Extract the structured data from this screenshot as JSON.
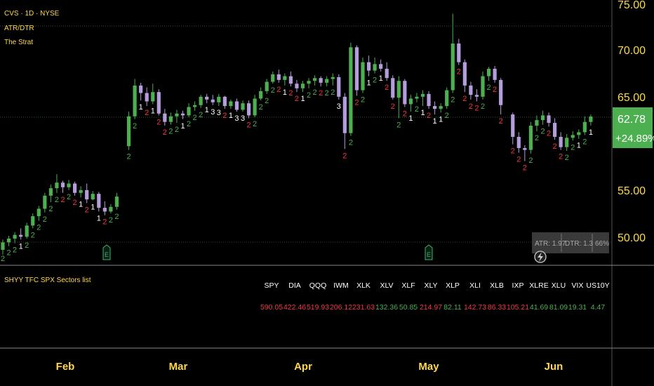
{
  "header": {
    "symbol_line": "CVS · 1D · NYSE",
    "indicator_1": "ATR/DTR",
    "indicator_2": "The Strat"
  },
  "price_axis": {
    "ticks": [
      "75.00",
      "70.00",
      "65.00",
      "55.00",
      "50.00"
    ],
    "tick_values": [
      75,
      70,
      65,
      55,
      50
    ],
    "last_price": "62.78",
    "change_pct": "+24.89%"
  },
  "time_axis": {
    "months": [
      "Feb",
      "Mar",
      "Apr",
      "May",
      "Jun"
    ]
  },
  "atr_box": {
    "atr_text": "ATR: 1.97",
    "dtr_text": "DTR: 1.3",
    "pct_text": "66%"
  },
  "earnings_markers": [
    "E",
    "E"
  ],
  "sector_table": {
    "title": "SHYY TFC SPX Sectors list",
    "columns": [
      {
        "symbol": "SPY",
        "value": "590.05",
        "color": "#f23645"
      },
      {
        "symbol": "DIA",
        "value": "422.46",
        "color": "#f23645"
      },
      {
        "symbol": "QQQ",
        "value": "519.93",
        "color": "#f23645"
      },
      {
        "symbol": "IWM",
        "value": "206.12",
        "color": "#f23645"
      },
      {
        "symbol": "XLK",
        "value": "231.63",
        "color": "#f23645"
      },
      {
        "symbol": "XLV",
        "value": "132.36",
        "color": "#4caf50"
      },
      {
        "symbol": "XLF",
        "value": "50.85",
        "color": "#4caf50"
      },
      {
        "symbol": "XLY",
        "value": "214.97",
        "color": "#f23645"
      },
      {
        "symbol": "XLP",
        "value": "82.11",
        "color": "#4caf50"
      },
      {
        "symbol": "XLI",
        "value": "142.73",
        "color": "#f23645"
      },
      {
        "symbol": "XLB",
        "value": "86.33",
        "color": "#f23645"
      },
      {
        "symbol": "IXP",
        "value": "105.21",
        "color": "#f23645"
      },
      {
        "symbol": "XLRE",
        "value": "41.69",
        "color": "#4caf50"
      },
      {
        "symbol": "XLU",
        "value": "81.09",
        "color": "#4caf50"
      },
      {
        "symbol": "VIX",
        "value": "19.31",
        "color": "#4caf50"
      },
      {
        "symbol": "US10Y",
        "value": "4.47",
        "color": "#4caf50"
      }
    ]
  },
  "colors": {
    "background": "#000000",
    "up_candle": "#4caf50",
    "down_candle": "#b39ddb",
    "strat_2_up": "#4caf50",
    "strat_2_down": "#f23645",
    "strat_inside_outside": "#ffffff",
    "axis_text": "#ffd84a",
    "last_price_bg": "#4caf50"
  },
  "candles": [
    {
      "o": 48.5,
      "h": 49.6,
      "l": 48.0,
      "c": 49.3,
      "s": "2"
    },
    {
      "o": 49.3,
      "h": 50.0,
      "l": 48.9,
      "c": 49.7,
      "s": "2"
    },
    {
      "o": 49.7,
      "h": 50.4,
      "l": 49.2,
      "c": 50.1,
      "s": "2"
    },
    {
      "o": 50.1,
      "h": 50.8,
      "l": 49.6,
      "c": 49.9,
      "s": "1"
    },
    {
      "o": 49.9,
      "h": 51.4,
      "l": 49.7,
      "c": 51.1,
      "s": "2"
    },
    {
      "o": 51.1,
      "h": 52.4,
      "l": 50.8,
      "c": 52.1,
      "s": "2"
    },
    {
      "o": 52.1,
      "h": 53.2,
      "l": 51.6,
      "c": 52.9,
      "s": "2"
    },
    {
      "o": 52.9,
      "h": 54.6,
      "l": 52.5,
      "c": 54.3,
      "s": "2"
    },
    {
      "o": 54.3,
      "h": 55.5,
      "l": 53.6,
      "c": 55.1,
      "s": "2"
    },
    {
      "o": 55.1,
      "h": 56.6,
      "l": 54.6,
      "c": 55.7,
      "s": "2"
    },
    {
      "o": 55.7,
      "h": 55.9,
      "l": 54.6,
      "c": 55.2,
      "s": "2"
    },
    {
      "o": 55.2,
      "h": 56.0,
      "l": 54.9,
      "c": 55.6,
      "s": "2"
    },
    {
      "o": 55.6,
      "h": 55.8,
      "l": 54.3,
      "c": 54.6,
      "s": "2"
    },
    {
      "o": 54.6,
      "h": 55.3,
      "l": 54.1,
      "c": 54.9,
      "s": "1"
    },
    {
      "o": 54.9,
      "h": 55.6,
      "l": 53.5,
      "c": 53.9,
      "s": "2"
    },
    {
      "o": 53.9,
      "h": 54.8,
      "l": 53.8,
      "c": 54.5,
      "s": "1"
    },
    {
      "o": 54.5,
      "h": 54.7,
      "l": 52.6,
      "c": 53.0,
      "s": "1"
    },
    {
      "o": 53.0,
      "h": 53.7,
      "l": 52.2,
      "c": 52.6,
      "s": "2"
    },
    {
      "o": 52.6,
      "h": 53.4,
      "l": 52.4,
      "c": 53.1,
      "s": "2"
    },
    {
      "o": 53.1,
      "h": 54.6,
      "l": 52.8,
      "c": 54.2,
      "s": "2"
    },
    {
      "o": null
    },
    {
      "o": 59.6,
      "h": 63.3,
      "l": 59.2,
      "c": 62.8,
      "s": "2"
    },
    {
      "o": 62.8,
      "h": 66.8,
      "l": 62.5,
      "c": 66.1,
      "s": "2"
    },
    {
      "o": 66.1,
      "h": 66.4,
      "l": 64.5,
      "c": 65.3,
      "s": "1"
    },
    {
      "o": 65.3,
      "h": 65.9,
      "l": 63.9,
      "c": 64.4,
      "s": "2"
    },
    {
      "o": 64.4,
      "h": 66.3,
      "l": 64.1,
      "c": 65.4,
      "s": "1"
    },
    {
      "o": 65.4,
      "h": 65.7,
      "l": 62.9,
      "c": 63.1,
      "s": "2"
    },
    {
      "o": 63.1,
      "h": 63.6,
      "l": 61.8,
      "c": 62.2,
      "s": "2"
    },
    {
      "o": 62.2,
      "h": 63.2,
      "l": 61.9,
      "c": 62.8,
      "s": "2"
    },
    {
      "o": 62.8,
      "h": 63.5,
      "l": 62.1,
      "c": 63.1,
      "s": "2"
    },
    {
      "o": 63.1,
      "h": 63.4,
      "l": 62.5,
      "c": 62.9,
      "s": "1"
    },
    {
      "o": 62.9,
      "h": 64.2,
      "l": 62.7,
      "c": 63.8,
      "s": "2"
    },
    {
      "o": 63.8,
      "h": 64.4,
      "l": 63.4,
      "c": 64.0,
      "s": "2"
    },
    {
      "o": 64.0,
      "h": 65.1,
      "l": 63.7,
      "c": 64.9,
      "s": "2"
    },
    {
      "o": 64.9,
      "h": 65.2,
      "l": 64.2,
      "c": 64.6,
      "s": "1"
    },
    {
      "o": 64.6,
      "h": 65.1,
      "l": 64.0,
      "c": 64.3,
      "s": "3"
    },
    {
      "o": 64.3,
      "h": 65.2,
      "l": 63.9,
      "c": 64.9,
      "s": "3"
    },
    {
      "o": 64.9,
      "h": 65.0,
      "l": 63.6,
      "c": 63.9,
      "s": "2"
    },
    {
      "o": 63.9,
      "h": 64.6,
      "l": 63.6,
      "c": 64.4,
      "s": "1"
    },
    {
      "o": 64.4,
      "h": 64.7,
      "l": 63.3,
      "c": 63.5,
      "s": "3"
    },
    {
      "o": 63.5,
      "h": 64.5,
      "l": 63.3,
      "c": 64.2,
      "s": "3"
    },
    {
      "o": 64.2,
      "h": 64.5,
      "l": 62.6,
      "c": 62.9,
      "s": "2"
    },
    {
      "o": 62.9,
      "h": 65.1,
      "l": 62.7,
      "c": 64.7,
      "s": "2"
    },
    {
      "o": 64.7,
      "h": 65.9,
      "l": 64.5,
      "c": 65.5,
      "s": "2"
    },
    {
      "o": 65.5,
      "h": 66.8,
      "l": 65.2,
      "c": 66.5,
      "s": "2"
    },
    {
      "o": 66.5,
      "h": 67.6,
      "l": 66.3,
      "c": 67.3,
      "s": "2"
    },
    {
      "o": 67.3,
      "h": 67.8,
      "l": 66.4,
      "c": 66.7,
      "s": "2"
    },
    {
      "o": 66.7,
      "h": 67.4,
      "l": 66.1,
      "c": 67.1,
      "s": "1"
    },
    {
      "o": 67.1,
      "h": 67.6,
      "l": 66.0,
      "c": 66.3,
      "s": "2"
    },
    {
      "o": 66.3,
      "h": 66.7,
      "l": 65.4,
      "c": 65.8,
      "s": "2"
    },
    {
      "o": 65.8,
      "h": 66.6,
      "l": 65.4,
      "c": 66.3,
      "s": "1"
    },
    {
      "o": 66.3,
      "h": 66.9,
      "l": 65.8,
      "c": 66.6,
      "s": "2"
    },
    {
      "o": 66.6,
      "h": 67.2,
      "l": 66.1,
      "c": 66.9,
      "s": "2"
    },
    {
      "o": 66.9,
      "h": 67.1,
      "l": 66.0,
      "c": 66.4,
      "s": "2"
    },
    {
      "o": 66.4,
      "h": 67.1,
      "l": 66.0,
      "c": 66.8,
      "s": "2"
    },
    {
      "o": 66.8,
      "h": 67.4,
      "l": 66.1,
      "c": 67.0,
      "s": "2"
    },
    {
      "o": 67.0,
      "h": 67.3,
      "l": 64.6,
      "c": 64.9,
      "s": "3"
    },
    {
      "o": 64.9,
      "h": 65.3,
      "l": 59.3,
      "c": 61.0,
      "s": "2"
    },
    {
      "o": 61.0,
      "h": 70.7,
      "l": 60.7,
      "c": 70.2,
      "s": "2"
    },
    {
      "o": 70.2,
      "h": 70.4,
      "l": 65.0,
      "c": 65.6,
      "s": "2"
    },
    {
      "o": 65.6,
      "h": 69.1,
      "l": 65.3,
      "c": 68.6,
      "s": "2"
    },
    {
      "o": 68.6,
      "h": 69.3,
      "l": 67.1,
      "c": 67.7,
      "s": "1"
    },
    {
      "o": 67.7,
      "h": 69.1,
      "l": 67.4,
      "c": 68.4,
      "s": "2"
    },
    {
      "o": 68.4,
      "h": 68.9,
      "l": 67.6,
      "c": 67.9,
      "s": "1"
    },
    {
      "o": 67.9,
      "h": 68.6,
      "l": 66.6,
      "c": 66.9,
      "s": "2"
    },
    {
      "o": 66.9,
      "h": 67.2,
      "l": 64.6,
      "c": 64.8,
      "s": "2"
    },
    {
      "o": 64.8,
      "h": 67.1,
      "l": 62.6,
      "c": 66.6,
      "s": "2"
    },
    {
      "o": 66.6,
      "h": 66.8,
      "l": 63.8,
      "c": 64.1,
      "s": "2"
    },
    {
      "o": 64.1,
      "h": 65.1,
      "l": 63.3,
      "c": 64.7,
      "s": "1"
    },
    {
      "o": 64.7,
      "h": 65.3,
      "l": 64.3,
      "c": 64.9,
      "s": "2"
    },
    {
      "o": 64.9,
      "h": 65.6,
      "l": 63.9,
      "c": 65.2,
      "s": "1"
    },
    {
      "o": 65.2,
      "h": 65.5,
      "l": 63.6,
      "c": 63.9,
      "s": "2"
    },
    {
      "o": 63.9,
      "h": 64.4,
      "l": 63.0,
      "c": 63.6,
      "s": "1"
    },
    {
      "o": 63.6,
      "h": 64.2,
      "l": 63.2,
      "c": 63.9,
      "s": "1"
    },
    {
      "o": 63.9,
      "h": 65.9,
      "l": 63.6,
      "c": 65.6,
      "s": "2"
    },
    {
      "o": 65.6,
      "h": 73.8,
      "l": 65.3,
      "c": 70.6,
      "s": "2"
    },
    {
      "o": 70.6,
      "h": 71.1,
      "l": 68.3,
      "c": 68.6,
      "s": "2"
    },
    {
      "o": 68.6,
      "h": 68.9,
      "l": 65.4,
      "c": 66.1,
      "s": "2"
    },
    {
      "o": 66.1,
      "h": 66.5,
      "l": 64.6,
      "c": 65.1,
      "s": "2"
    },
    {
      "o": 65.1,
      "h": 65.7,
      "l": 64.4,
      "c": 64.9,
      "s": "2"
    },
    {
      "o": 64.9,
      "h": 67.6,
      "l": 64.6,
      "c": 67.1,
      "s": "2"
    },
    {
      "o": 67.1,
      "h": 68.1,
      "l": 66.6,
      "c": 67.9,
      "s": "2"
    },
    {
      "o": 67.9,
      "h": 68.2,
      "l": 66.4,
      "c": 66.7,
      "s": "2"
    },
    {
      "o": 66.7,
      "h": 66.9,
      "l": 63.0,
      "c": 64.0,
      "s": "2"
    },
    {
      "o": null
    },
    {
      "o": 63.0,
      "h": 63.2,
      "l": 59.8,
      "c": 60.6,
      "s": "2"
    },
    {
      "o": 60.6,
      "h": 61.1,
      "l": 58.9,
      "c": 59.4,
      "s": "2"
    },
    {
      "o": 59.4,
      "h": 59.7,
      "l": 58.0,
      "c": 59.2,
      "s": "2"
    },
    {
      "o": 59.2,
      "h": 62.2,
      "l": 58.8,
      "c": 61.8,
      "s": "2"
    },
    {
      "o": 61.8,
      "h": 62.9,
      "l": 61.2,
      "c": 62.4,
      "s": "2"
    },
    {
      "o": 62.4,
      "h": 63.4,
      "l": 61.9,
      "c": 62.9,
      "s": "2"
    },
    {
      "o": 62.9,
      "h": 63.2,
      "l": 61.7,
      "c": 62.1,
      "s": "2"
    },
    {
      "o": 62.1,
      "h": 62.6,
      "l": 60.3,
      "c": 60.6,
      "s": "2"
    },
    {
      "o": 60.6,
      "h": 61.1,
      "l": 59.2,
      "c": 59.5,
      "s": "2"
    },
    {
      "o": 59.5,
      "h": 60.9,
      "l": 59.1,
      "c": 60.5,
      "s": "2"
    },
    {
      "o": 60.5,
      "h": 61.2,
      "l": 60.2,
      "c": 60.8,
      "s": "2"
    },
    {
      "o": 60.8,
      "h": 61.4,
      "l": 60.4,
      "c": 61.1,
      "s": "1"
    },
    {
      "o": 61.1,
      "h": 62.8,
      "l": 60.8,
      "c": 62.2,
      "s": "2"
    },
    {
      "o": 62.2,
      "h": 63.0,
      "l": 61.8,
      "c": 62.78,
      "s": "1"
    }
  ]
}
